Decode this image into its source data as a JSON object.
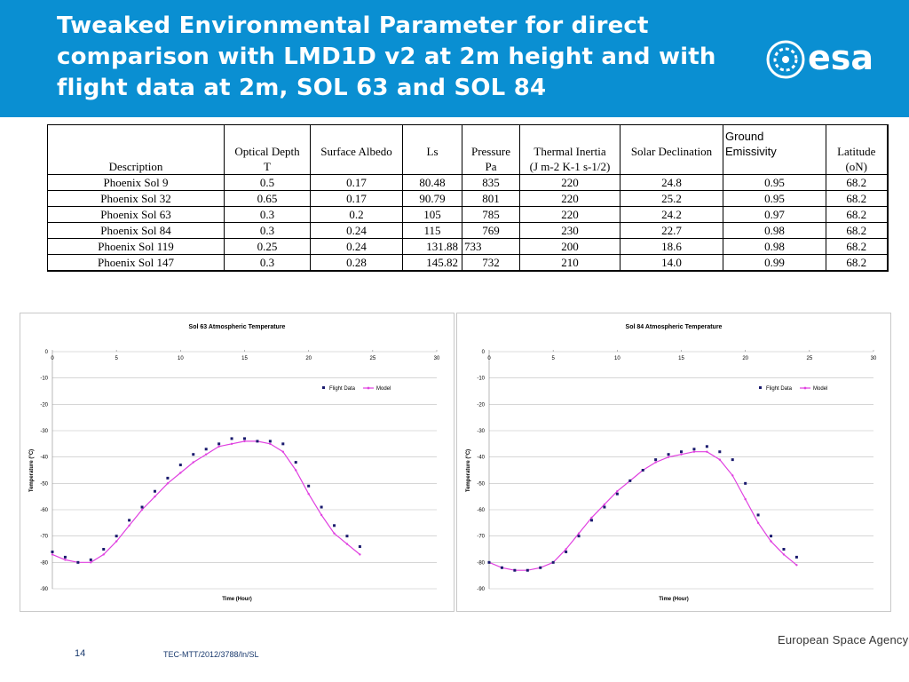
{
  "slide": {
    "title": "Tweaked Environmental Parameter for direct comparison with LMD1D v2 at 2m height and with flight data at 2m, SOL 63 and SOL 84",
    "logo_text": "esa",
    "page_number": "14",
    "doc_ref": "TEC-MTT/2012/3788/ln/SL",
    "agency": "European Space Agency",
    "colors": {
      "header": "#0a8fd2",
      "flight": "#1a1a6e",
      "model": "#e040e0"
    }
  },
  "table": {
    "headers": [
      "Description",
      "Optical Depth",
      "Surface Albedo",
      "Ls",
      "Pressure",
      "Thermal Inertia",
      "Solar Declination",
      "Ground Emissivity",
      "Latitude"
    ],
    "units": [
      "",
      "T",
      "",
      "",
      "Pa",
      "(J m-2 K-1 s-1/2)",
      "",
      "",
      "(oN)"
    ],
    "rows": [
      [
        "Phoenix Sol 9",
        "0.5",
        "0.17",
        "80.48",
        "835",
        "220",
        "24.8",
        "0.95",
        "68.2"
      ],
      [
        "Phoenix Sol 32",
        "0.65",
        "0.17",
        "90.79",
        "801",
        "220",
        "25.2",
        "0.95",
        "68.2"
      ],
      [
        "Phoenix Sol 63",
        "0.3",
        "0.2",
        "105",
        "785",
        "220",
        "24.2",
        "0.97",
        "68.2"
      ],
      [
        "Phoenix Sol 84",
        "0.3",
        "0.24",
        "115",
        "769",
        "230",
        "22.7",
        "0.98",
        "68.2"
      ],
      [
        "Phoenix Sol 119",
        "0.25",
        "0.24",
        "131.88",
        "733",
        "200",
        "18.6",
        "0.98",
        "68.2"
      ],
      [
        "Phoenix Sol 147",
        "0.3",
        "0.28",
        "145.82",
        "732",
        "210",
        "14.0",
        "0.99",
        "68.2"
      ]
    ]
  },
  "chart_data": [
    {
      "type": "scatter",
      "title": "Sol 63 Atmospheric Temperature",
      "xlabel": "Time (Hour)",
      "ylabel": "Temperature (°C)",
      "xlim": [
        0,
        30
      ],
      "ylim": [
        -90,
        0
      ],
      "xticks": [
        "0",
        "5",
        "10",
        "15",
        "20",
        "25",
        "30"
      ],
      "yticks": [
        "0",
        "-10",
        "-20",
        "-30",
        "-40",
        "-50",
        "-60",
        "-70",
        "-80",
        "-90"
      ],
      "legend": "top-right",
      "grid": "horizontal",
      "series": [
        {
          "name": "Flight Data",
          "x": [
            0,
            1,
            2,
            3,
            4,
            5,
            6,
            7,
            8,
            9,
            10,
            11,
            12,
            13,
            14,
            15,
            16,
            17,
            18,
            19,
            20,
            21,
            22,
            23,
            24
          ],
          "y": [
            -76,
            -78,
            -80,
            -79,
            -75,
            -70,
            -64,
            -59,
            -53,
            -48,
            -43,
            -39,
            -37,
            -35,
            -33,
            -33,
            -34,
            -34,
            -35,
            -42,
            -51,
            -59,
            -66,
            -70,
            -74
          ]
        },
        {
          "name": "Model",
          "x": [
            0,
            1,
            2,
            3,
            4,
            5,
            6,
            7,
            8,
            9,
            10,
            11,
            12,
            13,
            14,
            15,
            16,
            17,
            18,
            19,
            20,
            21,
            22,
            23,
            24
          ],
          "y": [
            -77,
            -79,
            -80,
            -80,
            -77,
            -72,
            -66,
            -60,
            -55,
            -50,
            -46,
            -42,
            -39,
            -36,
            -35,
            -34,
            -34,
            -35,
            -38,
            -45,
            -54,
            -62,
            -69,
            -73,
            -77
          ]
        }
      ]
    },
    {
      "type": "scatter",
      "title": "Sol 84 Atmospheric Temperature",
      "xlabel": "Time (Hour)",
      "ylabel": "Temperature (°C)",
      "xlim": [
        0,
        30
      ],
      "ylim": [
        -90,
        0
      ],
      "xticks": [
        "0",
        "5",
        "10",
        "15",
        "20",
        "25",
        "30"
      ],
      "yticks": [
        "0",
        "-10",
        "-20",
        "-30",
        "-40",
        "-50",
        "-60",
        "-70",
        "-80",
        "-90"
      ],
      "legend": "top-right",
      "grid": "horizontal",
      "series": [
        {
          "name": "Flight Data",
          "x": [
            0,
            1,
            2,
            3,
            4,
            5,
            6,
            7,
            8,
            9,
            10,
            11,
            12,
            13,
            14,
            15,
            16,
            17,
            18,
            19,
            20,
            21,
            22,
            23,
            24
          ],
          "y": [
            -80,
            -82,
            -83,
            -83,
            -82,
            -80,
            -76,
            -70,
            -64,
            -59,
            -54,
            -49,
            -45,
            -41,
            -39,
            -38,
            -37,
            -36,
            -38,
            -41,
            -50,
            -62,
            -70,
            -75,
            -78
          ]
        },
        {
          "name": "Model",
          "x": [
            0,
            1,
            2,
            3,
            4,
            5,
            6,
            7,
            8,
            9,
            10,
            11,
            12,
            13,
            14,
            15,
            16,
            17,
            18,
            19,
            20,
            21,
            22,
            23,
            24
          ],
          "y": [
            -80,
            -82,
            -83,
            -83,
            -82,
            -80,
            -75,
            -69,
            -63,
            -58,
            -53,
            -49,
            -45,
            -42,
            -40,
            -39,
            -38,
            -38,
            -41,
            -47,
            -56,
            -65,
            -72,
            -77,
            -81
          ]
        }
      ]
    }
  ]
}
